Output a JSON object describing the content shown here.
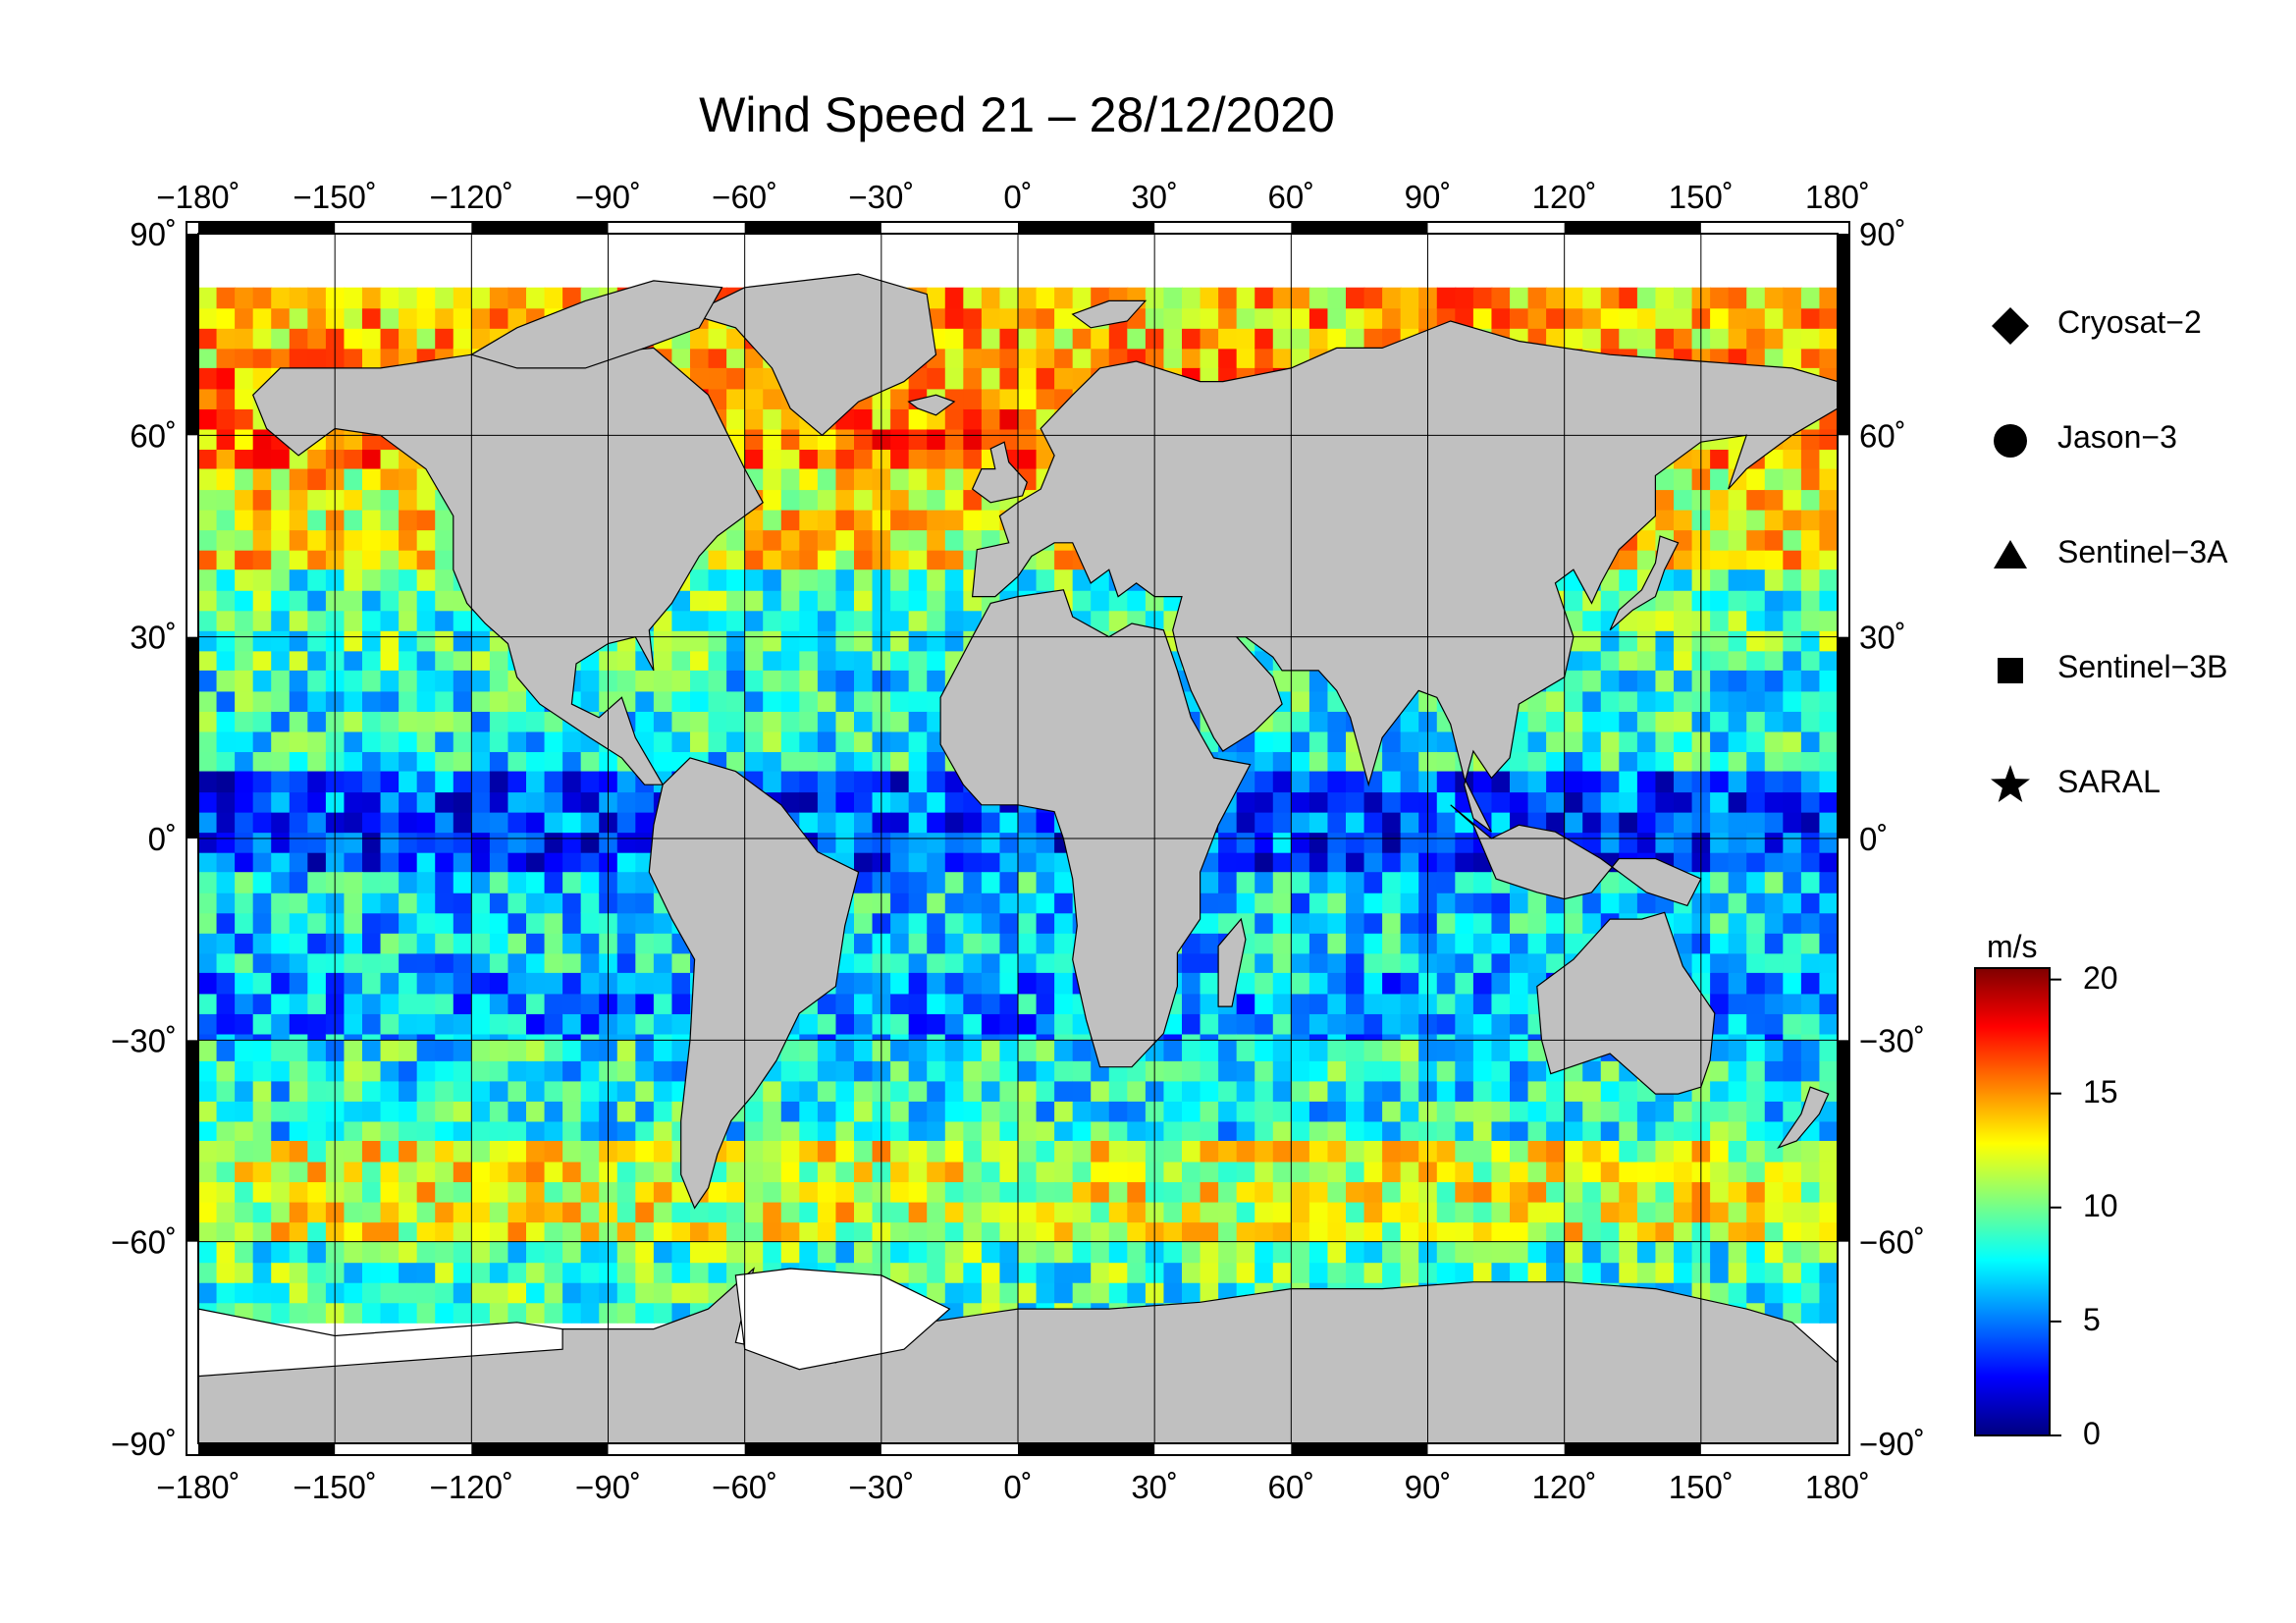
{
  "title": "Wind Speed 21 – 28/12/2020",
  "lon_ticks": [
    {
      "value": -180,
      "label": "−180˚"
    },
    {
      "value": -150,
      "label": "−150˚"
    },
    {
      "value": -120,
      "label": "−120˚"
    },
    {
      "value": -90,
      "label": "−90˚"
    },
    {
      "value": -60,
      "label": "−60˚"
    },
    {
      "value": -30,
      "label": "−30˚"
    },
    {
      "value": 0,
      "label": "0˚"
    },
    {
      "value": 30,
      "label": "30˚"
    },
    {
      "value": 60,
      "label": "60˚"
    },
    {
      "value": 90,
      "label": "90˚"
    },
    {
      "value": 120,
      "label": "120˚"
    },
    {
      "value": 150,
      "label": "150˚"
    },
    {
      "value": 180,
      "label": "180˚"
    }
  ],
  "lat_ticks": [
    {
      "value": 90,
      "label": "90˚"
    },
    {
      "value": 60,
      "label": "60˚"
    },
    {
      "value": 30,
      "label": "30˚"
    },
    {
      "value": 0,
      "label": "0˚"
    },
    {
      "value": -30,
      "label": "−30˚"
    },
    {
      "value": -60,
      "label": "−60˚"
    },
    {
      "value": -90,
      "label": "−90˚"
    }
  ],
  "legend": {
    "items": [
      {
        "symbol": "diamond",
        "label": "Cryosat−2"
      },
      {
        "symbol": "circle",
        "label": "Jason−3"
      },
      {
        "symbol": "triangle",
        "label": "Sentinel−3A"
      },
      {
        "symbol": "square",
        "label": "Sentinel−3B"
      },
      {
        "symbol": "star",
        "label": "SARAL"
      }
    ]
  },
  "colorbar": {
    "unit": "m/s",
    "min": 0,
    "max": 20.5,
    "ticks": [
      {
        "value": 20,
        "label": "20"
      },
      {
        "value": 15,
        "label": "15"
      },
      {
        "value": 10,
        "label": "10"
      },
      {
        "value": 5,
        "label": "5"
      },
      {
        "value": 0,
        "label": "0"
      }
    ],
    "colors": [
      "#00007f",
      "#0000ff",
      "#007fff",
      "#00ffff",
      "#7fff7f",
      "#ffff00",
      "#ff7f00",
      "#ff0000",
      "#7f0000"
    ]
  },
  "colors": {
    "land": "#c0c0c0",
    "ice": "#ffffff",
    "frame": "#000000"
  },
  "wind_bands": [
    {
      "lat": [
        70,
        82
      ],
      "speed": 14
    },
    {
      "lat": [
        55,
        70
      ],
      "speed": 15
    },
    {
      "lat": [
        40,
        55
      ],
      "speed": 13
    },
    {
      "lat": [
        25,
        40
      ],
      "speed": 9
    },
    {
      "lat": [
        10,
        25
      ],
      "speed": 8
    },
    {
      "lat": [
        -5,
        10
      ],
      "speed": 4
    },
    {
      "lat": [
        -20,
        -5
      ],
      "speed": 7
    },
    {
      "lat": [
        -32,
        -20
      ],
      "speed": 6
    },
    {
      "lat": [
        -45,
        -32
      ],
      "speed": 8
    },
    {
      "lat": [
        -60,
        -45
      ],
      "speed": 12
    },
    {
      "lat": [
        -72,
        -60
      ],
      "speed": 9
    }
  ]
}
